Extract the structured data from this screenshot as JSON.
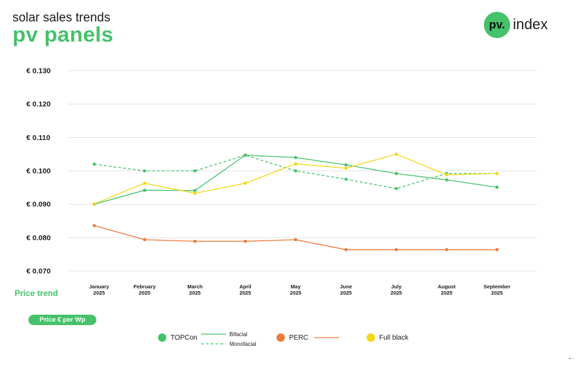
{
  "header": {
    "subtitle": "solar sales trends",
    "title": "pv panels"
  },
  "logo": {
    "mark": "pv.",
    "text": "index",
    "color": "#46c26a"
  },
  "price_trend_label": "Price trend",
  "price_pill": "Price € per Wp",
  "legend": {
    "topcon": "TOPCon",
    "bifacial": "Bifacial",
    "monofacial": "Monofacial",
    "perc": "PERC",
    "fullblack": "Full black"
  },
  "chart_data": {
    "type": "line",
    "categories": [
      "January 2025",
      "February 2025",
      "March 2025",
      "April 2025",
      "May 2025",
      "June 2025",
      "July 2025",
      "August 2025",
      "September 2025"
    ],
    "y_tick_labels": [
      "€ 0.130",
      "€ 0.120",
      "€ 0.110",
      "€ 0.100",
      "€ 0.090",
      "€ 0.080",
      "€ 0.070"
    ],
    "ylim": [
      0.07,
      0.13
    ],
    "grid": true,
    "series": [
      {
        "name": "TOPCon Bifacial",
        "color": "#46c26a",
        "style": "solid",
        "values": [
          0.09,
          0.0942,
          0.0941,
          0.1047,
          0.104,
          0.1018,
          0.0992,
          0.0973,
          0.0951
        ]
      },
      {
        "name": "TOPCon Monofacial",
        "color": "#46c26a",
        "style": "dashed",
        "values": [
          0.102,
          0.1,
          0.1,
          0.1047,
          0.1,
          0.0975,
          0.0947,
          0.0992,
          0.0992
        ]
      },
      {
        "name": "PERC",
        "color": "#ec7a3a",
        "style": "solid",
        "values": [
          0.0836,
          0.0794,
          0.0789,
          0.0789,
          0.0794,
          0.0764,
          0.0764,
          0.0764,
          0.0764
        ]
      },
      {
        "name": "Full black",
        "color": "#f2d817",
        "style": "solid",
        "values": [
          0.0901,
          0.0963,
          0.0933,
          0.0963,
          0.1021,
          0.1008,
          0.105,
          0.0988,
          0.0992
        ]
      }
    ]
  }
}
